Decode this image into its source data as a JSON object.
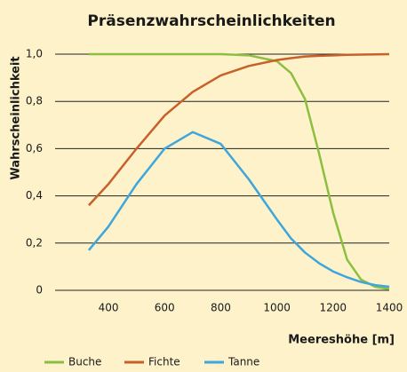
{
  "chart_data": {
    "type": "line",
    "title": "Präsenzwahrscheinlichkeiten",
    "ylabel": "Wahrscheinlichkeit",
    "xlabel": "Meereshöhe [m]",
    "x": [
      330,
      400,
      500,
      600,
      700,
      800,
      900,
      1000,
      1050,
      1100,
      1150,
      1200,
      1250,
      1300,
      1350,
      1400
    ],
    "series": [
      {
        "name": "Buche",
        "color": "#8cbf3f",
        "values": [
          1,
          1,
          1,
          1,
          1,
          1,
          0.995,
          0.97,
          0.92,
          0.81,
          0.58,
          0.33,
          0.13,
          0.045,
          0.015,
          0.005
        ]
      },
      {
        "name": "Fichte",
        "color": "#c8602a",
        "values": [
          0.36,
          0.45,
          0.6,
          0.74,
          0.84,
          0.91,
          0.95,
          0.975,
          0.983,
          0.99,
          0.993,
          0.995,
          0.997,
          0.998,
          0.999,
          1.0
        ]
      },
      {
        "name": "Tanne",
        "color": "#3ea6dc",
        "values": [
          0.17,
          0.27,
          0.45,
          0.6,
          0.67,
          0.62,
          0.47,
          0.3,
          0.22,
          0.16,
          0.115,
          0.08,
          0.055,
          0.035,
          0.022,
          0.015
        ]
      }
    ],
    "xlim": [
      210,
      1400
    ],
    "xticks": [
      400,
      600,
      800,
      1000,
      1200,
      1400
    ],
    "ylim": [
      0,
      1
    ],
    "yticks": [
      0,
      {
        "value": 0.2,
        "label": "0,2"
      },
      {
        "value": 0.4,
        "label": "0,4"
      },
      {
        "value": 0.6,
        "label": "0,6"
      },
      {
        "value": 0.8,
        "label": "0,8"
      },
      {
        "value": 1,
        "label": "1,0"
      }
    ],
    "grid": true
  }
}
